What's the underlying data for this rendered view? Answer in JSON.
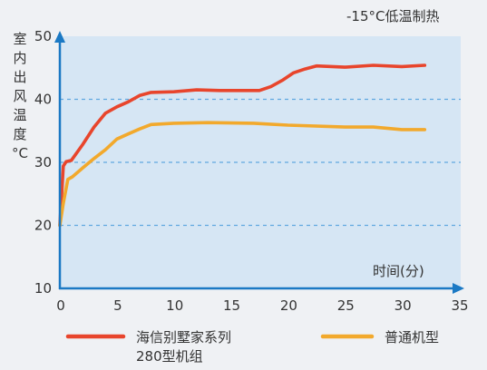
{
  "chart_data": {
    "type": "line",
    "title": "-15°C低温制热",
    "xlabel": "时间(分)",
    "ylabel": "室内出风温度°C",
    "xlim": [
      0,
      35
    ],
    "ylim": [
      10,
      50
    ],
    "xticks": [
      0,
      5,
      10,
      15,
      20,
      25,
      30,
      35
    ],
    "yticks": [
      10,
      20,
      30,
      40,
      50
    ],
    "grid": true,
    "legend": "bottom",
    "colors": {
      "axis": "#1b79c4",
      "plot_background": "#d6e6f4",
      "grid": "#5fa8df"
    },
    "series": [
      {
        "name": "海信别墅家系列\n280型机组",
        "color": "#e8452c",
        "x": [
          0,
          0.3,
          0.55,
          1,
          2,
          3,
          4,
          5,
          6,
          7,
          8,
          10,
          12,
          14,
          16,
          17.5,
          18.5,
          19.5,
          20.5,
          21.5,
          22.5,
          25,
          27.5,
          30,
          32
        ],
        "y": [
          20,
          29.4,
          30.1,
          30.3,
          32.8,
          35.6,
          37.8,
          38.8,
          39.6,
          40.6,
          41.1,
          41.2,
          41.5,
          41.4,
          41.4,
          41.4,
          42.0,
          43.0,
          44.2,
          44.8,
          45.3,
          45.1,
          45.4,
          45.2,
          45.4
        ]
      },
      {
        "name": "普通机型",
        "color": "#f2a92c",
        "x": [
          0,
          0.3,
          0.7,
          1.1,
          2,
          3,
          4,
          5,
          6,
          7,
          8,
          10,
          13,
          17,
          20,
          25,
          27.5,
          30,
          32
        ],
        "y": [
          20,
          23.5,
          27.3,
          27.7,
          29.1,
          30.6,
          32.0,
          33.7,
          34.5,
          35.3,
          36.0,
          36.2,
          36.3,
          36.2,
          35.9,
          35.6,
          35.6,
          35.2,
          35.2
        ]
      }
    ]
  }
}
